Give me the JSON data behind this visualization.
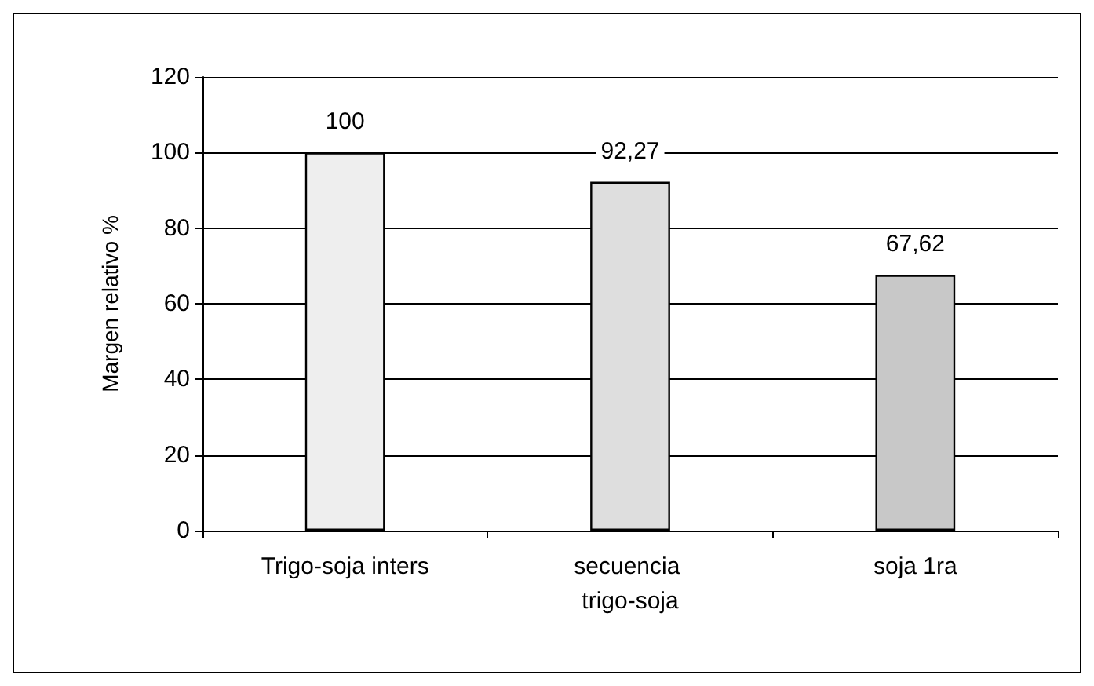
{
  "chart_data": {
    "type": "bar",
    "ylabel": "Margen relativo %",
    "categories": [
      "Trigo-soja inters",
      "secuencia trigo-soja",
      "soja 1ra"
    ],
    "values": [
      100,
      92.27,
      67.62
    ],
    "value_labels": [
      "100",
      "92,27",
      "67,62"
    ],
    "colors": [
      "#eeeeee",
      "#dedede",
      "#c8c8c8"
    ],
    "ylim": [
      0,
      120
    ],
    "yticks": [
      0,
      20,
      40,
      60,
      80,
      100,
      120
    ],
    "grid": "y"
  }
}
